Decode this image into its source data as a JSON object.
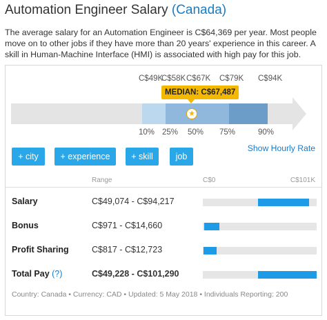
{
  "header": {
    "title": "Automation Engineer Salary",
    "country": "(Canada)"
  },
  "description": "The average salary for an Automation Engineer is C$64,369 per year. Most people move on to other jobs if they have more than 20 years' experience in this career. A skill in Human-Machine Interface (HMI) is associated with high pay for this job.",
  "chart": {
    "top_labels": [
      "C$49K",
      "C$58K",
      "C$67K",
      "C$79K",
      "C$94K"
    ],
    "median_label": "MEDIAN: C$67,487",
    "bottom_labels": [
      "10%",
      "25%",
      "50%",
      "75%",
      "90%"
    ],
    "colors": {
      "bar_bg": "#e4e4e4",
      "band_light": "#bcd8ee",
      "band_mid": "#8fb8dc",
      "band_dark": "#6c9dc9",
      "median": "#f5b800"
    }
  },
  "chart_data": {
    "type": "bar",
    "categories": [
      "10%",
      "25%",
      "50%",
      "75%",
      "90%"
    ],
    "values": [
      49000,
      58000,
      67487,
      79000,
      94000
    ],
    "title": "",
    "xlabel": "",
    "ylabel": ""
  },
  "buttons": {
    "city": "+ city",
    "experience": "+ experience",
    "skill": "+ skill",
    "job": "job",
    "hourly": "Show Hourly Rate"
  },
  "table": {
    "col_range": "Range",
    "col_min": "C$0",
    "col_max": "C$101K",
    "rows": [
      {
        "label": "Salary",
        "range": "C$49,074 - C$94,217",
        "low": 49074,
        "high": 94217
      },
      {
        "label": "Bonus",
        "range": "C$971 - C$14,660",
        "low": 971,
        "high": 14660
      },
      {
        "label": "Profit Sharing",
        "range": "C$817 - C$12,723",
        "low": 817,
        "high": 12723
      },
      {
        "label": "Total Pay",
        "help": "(?)",
        "range": "C$49,228 - C$101,290",
        "low": 49228,
        "high": 101290
      }
    ],
    "max_value": 101000
  },
  "footer": "Country: Canada • Currency: CAD • Updated: 5 May 2018 • Individuals Reporting: 200"
}
